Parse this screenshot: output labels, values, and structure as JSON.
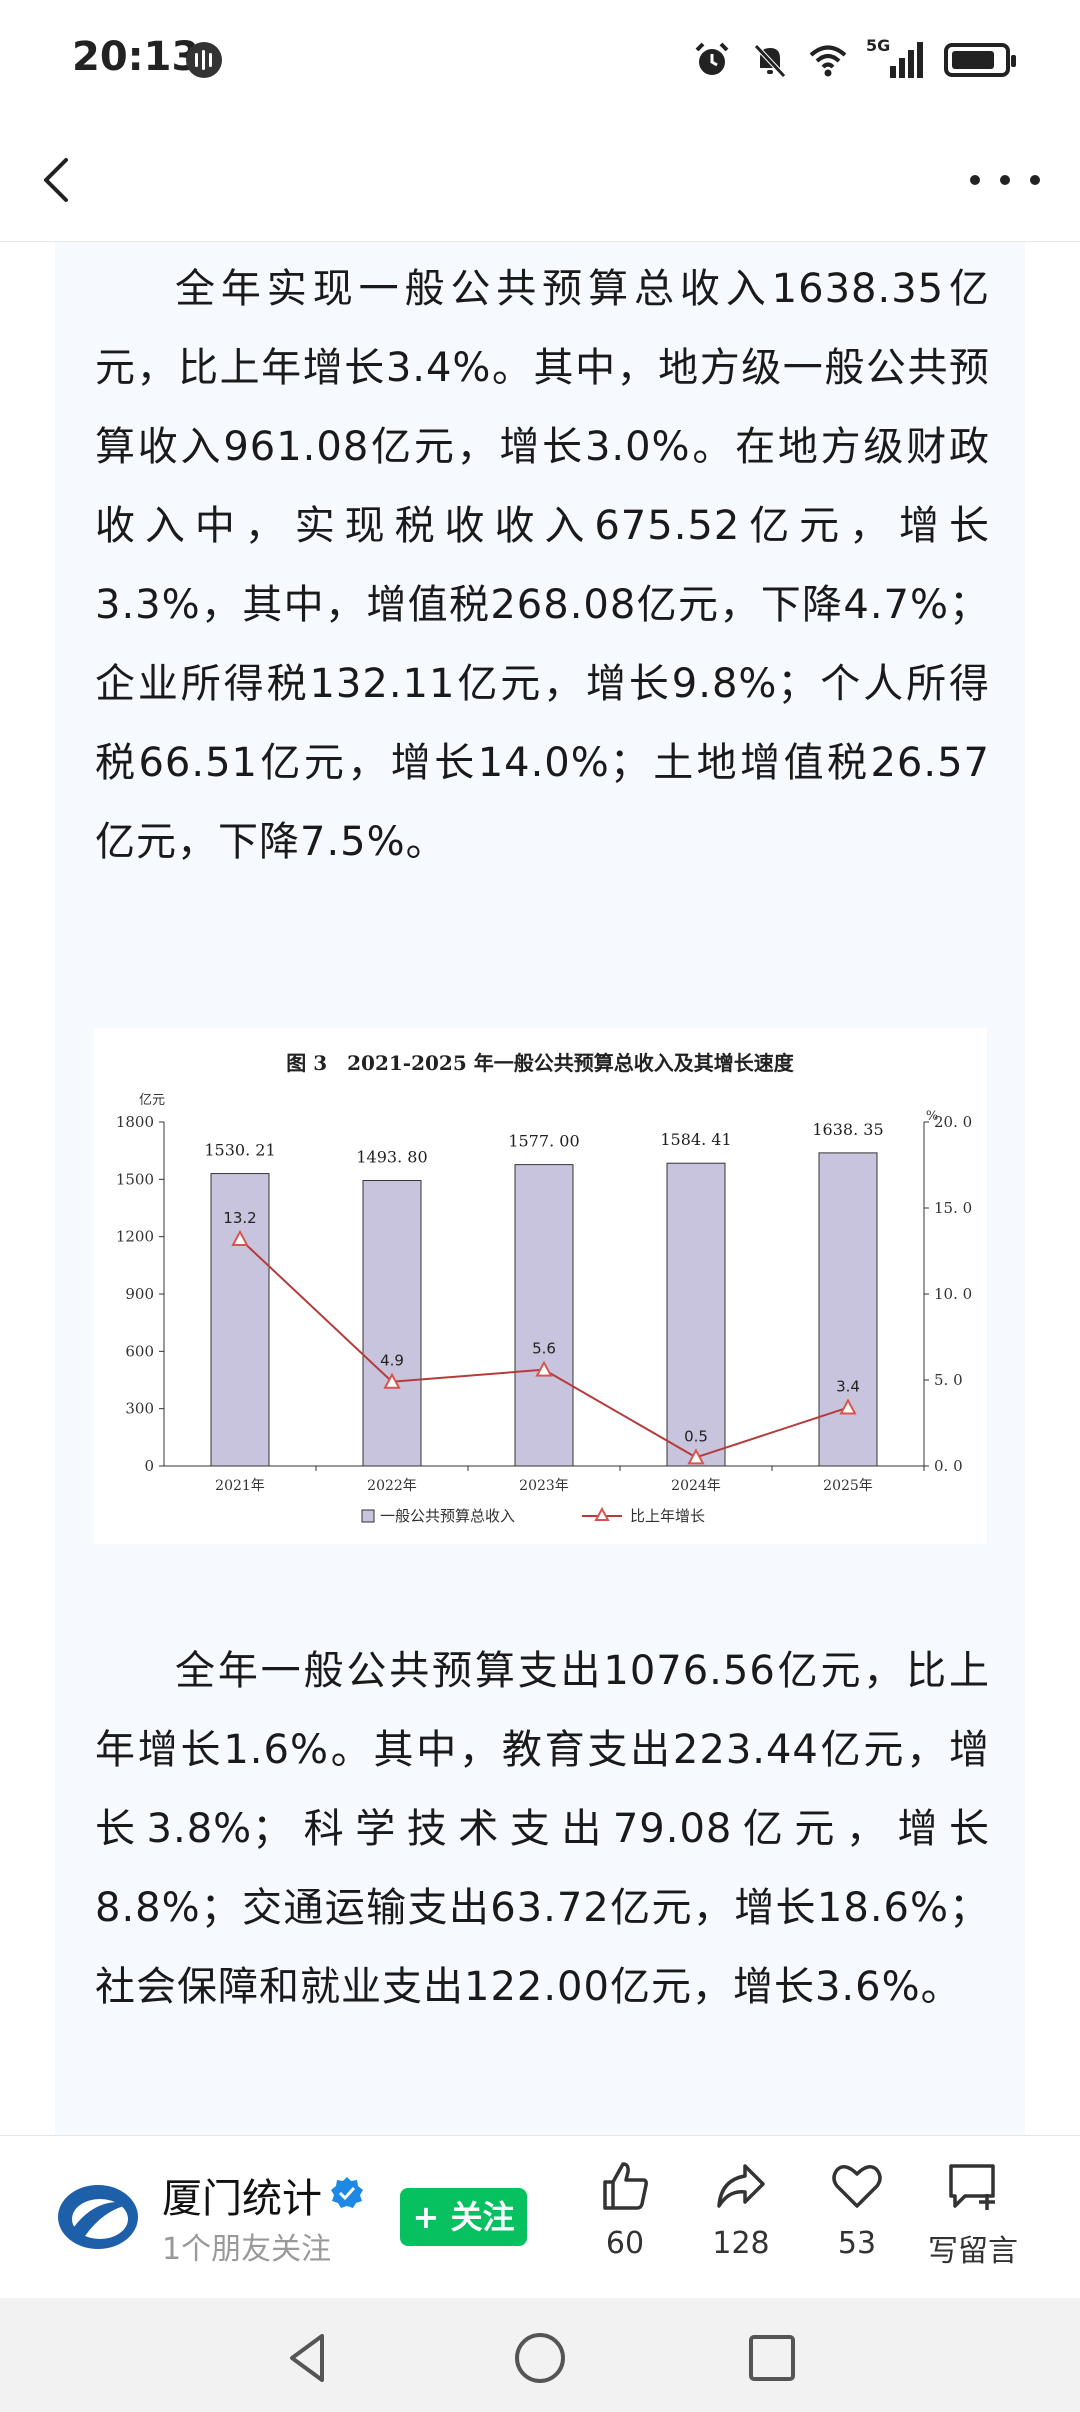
{
  "status": {
    "time": "20:13",
    "network": "5G"
  },
  "paragraphs": [
    "全年实现一般公共预算总收入1638.35亿元，比上年增长3.4%。其中，地方级一般公共预算收入961.08亿元，增长3.0%。在地方级财政收入中，实现税收收入675.52亿元，增长3.3%，其中，增值税268.08亿元，下降4.7%；企业所得税132.11亿元，增长9.8%；个人所得税66.51亿元，增长14.0%；土地增值税26.57亿元，下降7.5%。",
    "全年一般公共预算支出1076.56亿元，比上年增长1.6%。其中，教育支出223.44亿元，增长3.8%；科学技术支出79.08亿元，增长8.8%；交通运输支出63.72亿元，增长18.6%；社会保障和就业支出122.00亿元，增长3.6%。"
  ],
  "chart_data": {
    "type": "bar",
    "title": "图 3　2021-2025 年一般公共预算总收入及其增长速度",
    "categories": [
      "2021年",
      "2022年",
      "2023年",
      "2024年",
      "2025年"
    ],
    "series": [
      {
        "name": "一般公共预算总收入",
        "type": "bar",
        "axis": "left",
        "values": [
          1530.21,
          1493.8,
          1577.0,
          1584.41,
          1638.35
        ],
        "labels": [
          "1530. 21",
          "1493. 80",
          "1577. 00",
          "1584. 41",
          "1638. 35"
        ]
      },
      {
        "name": "比上年增长",
        "type": "line",
        "axis": "right",
        "values": [
          13.2,
          4.9,
          5.6,
          0.5,
          3.4
        ],
        "labels": [
          "13.2",
          "4.9",
          "5.6",
          "0.5",
          "3.4"
        ]
      }
    ],
    "y_left": {
      "unit": "亿元",
      "range": [
        0,
        1800
      ],
      "ticks": [
        "0",
        "300",
        "600",
        "900",
        "1200",
        "1500",
        "1800"
      ]
    },
    "y_right": {
      "unit": "%",
      "range": [
        0,
        20
      ],
      "ticks": [
        "0. 0",
        "5. 0",
        "10. 0",
        "15. 0",
        "20. 0"
      ]
    },
    "legend": {
      "position": "bottom"
    },
    "colors": {
      "bar": "#c9c4dd",
      "bar_stroke": "#333333",
      "line": "#b53b3b",
      "marker": "#d9534f"
    }
  },
  "footer": {
    "account_name": "厦门统计",
    "account_sub": "1个朋友关注",
    "follow_label": "+ 关注",
    "likes": "60",
    "shares": "128",
    "favorites": "53",
    "comment_label": "写留言"
  }
}
